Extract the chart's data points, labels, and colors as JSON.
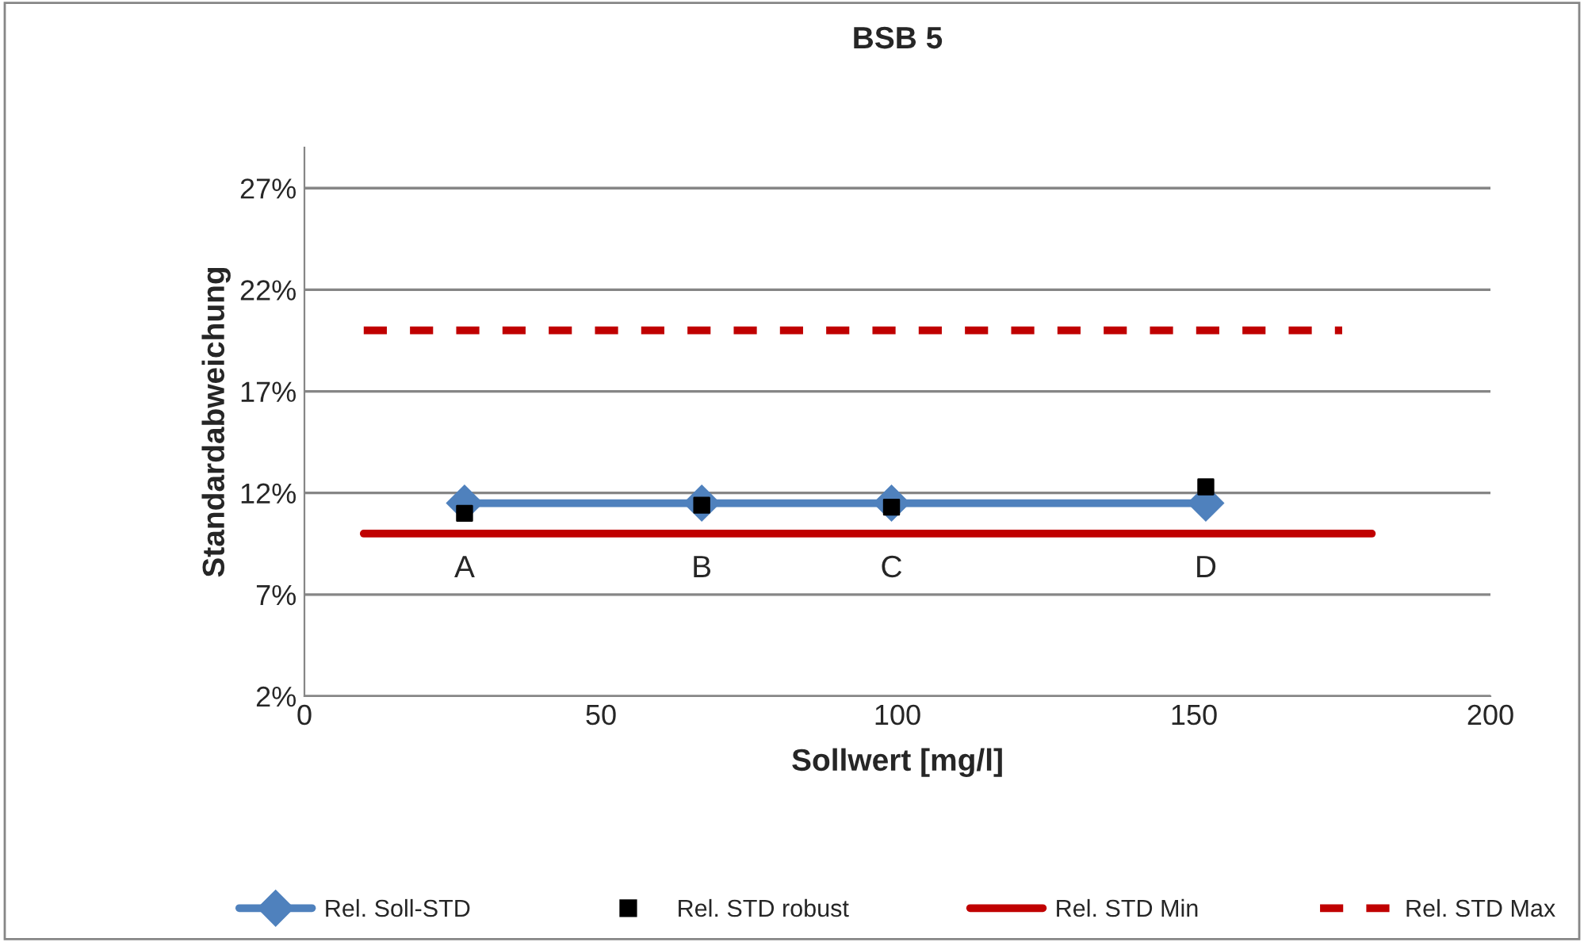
{
  "chart_data": {
    "type": "line",
    "title": "BSB 5",
    "xlabel": "Sollwert [mg/l]",
    "ylabel": "Standardabweichung",
    "xlim": [
      0,
      200
    ],
    "xticks": [
      0,
      50,
      100,
      150,
      200
    ],
    "ylim": [
      2,
      29
    ],
    "yticks": [
      {
        "value": 2,
        "label": "2%"
      },
      {
        "value": 7,
        "label": "7%"
      },
      {
        "value": 12,
        "label": "12%"
      },
      {
        "value": 17,
        "label": "17%"
      },
      {
        "value": 22,
        "label": "22%"
      },
      {
        "value": 27,
        "label": "27%"
      }
    ],
    "grid": "y",
    "legend": "bottom",
    "series": [
      {
        "name": "Rel. Soll-STD",
        "color": "#4f81bd",
        "marker": "diamond",
        "line_style": "solid",
        "x": [
          27,
          67,
          99,
          152
        ],
        "values": [
          11.5,
          11.5,
          11.5,
          11.5
        ]
      },
      {
        "name": "Rel. STD robust",
        "type": "scatter",
        "color": "#000000",
        "marker": "square",
        "x": [
          27,
          67,
          99,
          152
        ],
        "values": [
          11.0,
          11.4,
          11.3,
          12.3
        ]
      },
      {
        "name": "Rel. STD Min",
        "color": "#c00000",
        "marker": "none",
        "line_style": "solid",
        "x": [
          10,
          180
        ],
        "values": [
          10,
          10
        ]
      },
      {
        "name": "Rel. STD Max",
        "color": "#c00000",
        "marker": "none",
        "line_style": "dashed",
        "x": [
          10,
          175
        ],
        "values": [
          20,
          20
        ]
      }
    ],
    "annotations": [
      {
        "text": "A",
        "x": 27,
        "y": 11.5
      },
      {
        "text": "B",
        "x": 67,
        "y": 11.5
      },
      {
        "text": "C",
        "x": 99,
        "y": 11.5
      },
      {
        "text": "D",
        "x": 152,
        "y": 11.5
      }
    ]
  }
}
